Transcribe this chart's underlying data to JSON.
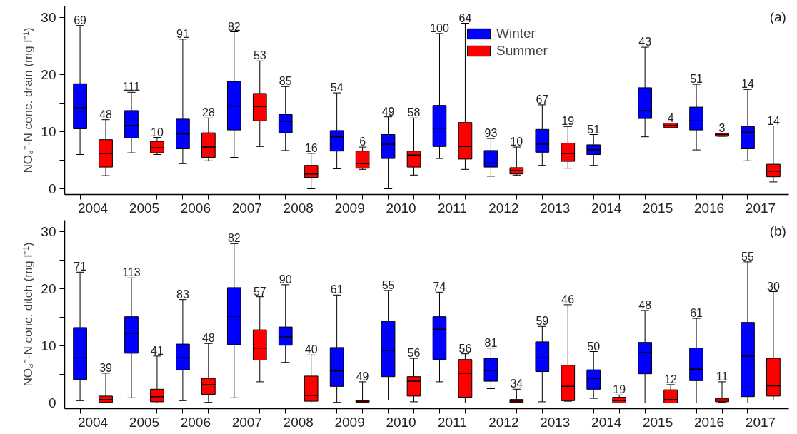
{
  "chart_data": [
    {
      "type": "box",
      "categories": [
        "2004",
        "2005",
        "2006",
        "2007",
        "2008",
        "2009",
        "2010",
        "2011",
        "2012",
        "2013",
        "2014",
        "2015",
        "2016",
        "2017"
      ],
      "ylabel": "NO₃⁻-N conc. drain (mg l⁻¹)",
      "ylim": [
        -1,
        32
      ],
      "yticks": [
        0,
        {
          "value": 5,
          "label": null
        },
        10,
        {
          "value": 15,
          "label": null
        },
        20,
        {
          "value": 25,
          "label": null
        },
        30
      ],
      "legend": "top",
      "annotations": [
        "(a)"
      ],
      "series": [
        {
          "name": "Winter",
          "color": "#0000ff",
          "value_labels": [
            "69",
            "111",
            "91",
            "82",
            "85",
            "54",
            "49",
            "100",
            "93",
            "67",
            "51",
            "43",
            "51",
            "14"
          ],
          "boxes": [
            {
              "low": 6.0,
              "q1": 10.5,
              "median": 14.2,
              "q3": 18.4,
              "high": 28.6
            },
            {
              "low": 6.3,
              "q1": 8.9,
              "median": 11.1,
              "q3": 13.7,
              "high": 16.9
            },
            {
              "low": 4.4,
              "q1": 7.0,
              "median": 9.6,
              "q3": 12.2,
              "high": 26.2
            },
            {
              "low": 5.5,
              "q1": 10.3,
              "median": 14.5,
              "q3": 18.8,
              "high": 27.5
            },
            {
              "low": 6.7,
              "q1": 9.8,
              "median": 11.8,
              "q3": 13.0,
              "high": 17.9
            },
            {
              "low": 3.5,
              "q1": 6.6,
              "median": 9.1,
              "q3": 10.2,
              "high": 16.8
            },
            {
              "low": 0.0,
              "q1": 5.3,
              "median": 7.8,
              "q3": 9.5,
              "high": 12.6
            },
            {
              "low": 5.3,
              "q1": 7.4,
              "median": 10.6,
              "q3": 14.6,
              "high": 27.2
            },
            {
              "low": 2.2,
              "q1": 3.8,
              "median": 4.5,
              "q3": 6.7,
              "high": 8.8
            },
            {
              "low": 4.1,
              "q1": 6.4,
              "median": 7.8,
              "q3": 10.4,
              "high": 14.7
            },
            {
              "low": 4.1,
              "q1": 6.0,
              "median": 6.8,
              "q3": 7.7,
              "high": 9.5
            },
            {
              "low": 9.1,
              "q1": 12.3,
              "median": 13.7,
              "q3": 17.7,
              "high": 24.8
            },
            {
              "low": 6.8,
              "q1": 10.3,
              "median": 11.9,
              "q3": 14.3,
              "high": 18.3
            },
            {
              "low": 4.9,
              "q1": 7.0,
              "median": 9.9,
              "q3": 10.9,
              "high": 17.4
            }
          ]
        },
        {
          "name": "Summer",
          "color": "#ff0000",
          "value_labels": [
            "48",
            "10",
            "28",
            "53",
            "16",
            "6",
            "58",
            "64",
            "10",
            "19",
            null,
            "4",
            "3",
            "14"
          ],
          "boxes": [
            {
              "low": 2.3,
              "q1": 3.8,
              "median": 6.2,
              "q3": 8.6,
              "high": 12.1
            },
            {
              "low": 6.0,
              "q1": 6.3,
              "median": 7.2,
              "q3": 8.3,
              "high": 9.0
            },
            {
              "low": 4.9,
              "q1": 5.5,
              "median": 7.3,
              "q3": 9.8,
              "high": 12.4
            },
            {
              "low": 7.4,
              "q1": 11.9,
              "median": 14.4,
              "q3": 16.7,
              "high": 22.4
            },
            {
              "low": 0.0,
              "q1": 2.0,
              "median": 2.6,
              "q3": 4.1,
              "high": 6.2
            },
            {
              "low": 3.4,
              "q1": 3.6,
              "median": 4.4,
              "q3": 6.6,
              "high": 7.3
            },
            {
              "low": 2.4,
              "q1": 3.8,
              "median": 5.9,
              "q3": 6.6,
              "high": 12.4
            },
            {
              "low": 3.4,
              "q1": 5.2,
              "median": 7.4,
              "q3": 11.6,
              "high": 29.0
            },
            {
              "low": 2.4,
              "q1": 2.6,
              "median": 3.2,
              "q3": 3.7,
              "high": 7.3
            },
            {
              "low": 3.6,
              "q1": 4.8,
              "median": 6.2,
              "q3": 8.0,
              "high": 10.9
            },
            null,
            {
              "low": 10.7,
              "q1": 10.7,
              "median": 11.1,
              "q3": 11.5,
              "high": 11.5
            },
            {
              "low": 9.2,
              "q1": 9.2,
              "median": 9.5,
              "q3": 9.7,
              "high": 9.7
            },
            {
              "low": 1.2,
              "q1": 2.1,
              "median": 3.1,
              "q3": 4.3,
              "high": 11.0
            }
          ]
        }
      ]
    },
    {
      "type": "box",
      "categories": [
        "2004",
        "2005",
        "2006",
        "2007",
        "2008",
        "2009",
        "2010",
        "2011",
        "2012",
        "2013",
        "2014",
        "2015",
        "2016",
        "2017"
      ],
      "ylabel": "NO₃⁻-N conc. ditch (mg l⁻¹)",
      "ylim": [
        -1,
        32
      ],
      "yticks": [
        0,
        {
          "value": 5,
          "label": null
        },
        10,
        {
          "value": 15,
          "label": null
        },
        20,
        {
          "value": 25,
          "label": null
        },
        30
      ],
      "annotations": [
        "(b)"
      ],
      "series": [
        {
          "color": "#0000ff",
          "value_labels": [
            "71",
            "113",
            "83",
            "82",
            "90",
            "61",
            "55",
            "74",
            "81",
            "59",
            "50",
            "48",
            "61",
            "55"
          ],
          "boxes": [
            {
              "low": 0.4,
              "q1": 4.1,
              "median": 7.9,
              "q3": 13.2,
              "high": 22.9
            },
            {
              "low": 0.9,
              "q1": 8.7,
              "median": 12.2,
              "q3": 15.1,
              "high": 21.9
            },
            {
              "low": 0.4,
              "q1": 5.8,
              "median": 7.9,
              "q3": 10.3,
              "high": 18.1
            },
            {
              "low": 0.9,
              "q1": 10.2,
              "median": 15.2,
              "q3": 20.2,
              "high": 27.9
            },
            {
              "low": 7.1,
              "q1": 10.1,
              "median": 11.6,
              "q3": 13.3,
              "high": 20.7
            },
            {
              "low": 0.1,
              "q1": 2.9,
              "median": 5.6,
              "q3": 9.7,
              "high": 18.9
            },
            {
              "low": 0.5,
              "q1": 4.6,
              "median": 9.2,
              "q3": 14.3,
              "high": 19.7
            },
            {
              "low": 3.7,
              "q1": 7.6,
              "median": 12.9,
              "q3": 15.1,
              "high": 19.4
            },
            {
              "low": 2.5,
              "q1": 3.8,
              "median": 5.7,
              "q3": 7.8,
              "high": 9.6
            },
            {
              "low": 0.2,
              "q1": 5.5,
              "median": 7.9,
              "q3": 10.7,
              "high": 13.4
            },
            {
              "low": 0.8,
              "q1": 2.4,
              "median": 4.3,
              "q3": 5.8,
              "high": 9.0
            },
            {
              "low": 0.0,
              "q1": 5.1,
              "median": 8.8,
              "q3": 10.6,
              "high": 16.2
            },
            {
              "low": 0.0,
              "q1": 3.9,
              "median": 5.9,
              "q3": 9.6,
              "high": 14.8
            },
            {
              "low": 0.0,
              "q1": 1.1,
              "median": 8.2,
              "q3": 14.1,
              "high": 24.7
            }
          ]
        },
        {
          "color": "#ff0000",
          "value_labels": [
            "39",
            "41",
            "48",
            "57",
            "40",
            "49",
            "56",
            "56",
            "34",
            "46",
            "19",
            "12",
            "11",
            "30"
          ],
          "boxes": [
            {
              "low": 0.0,
              "q1": 0.1,
              "median": 0.6,
              "q3": 1.2,
              "high": 5.2
            },
            {
              "low": 0.0,
              "q1": 0.2,
              "median": 1.1,
              "q3": 2.4,
              "high": 8.2
            },
            {
              "low": 0.1,
              "q1": 1.5,
              "median": 3.2,
              "q3": 4.3,
              "high": 10.4
            },
            {
              "low": 3.7,
              "q1": 7.5,
              "median": 9.6,
              "q3": 12.8,
              "high": 18.6
            },
            {
              "low": 0.0,
              "q1": 0.3,
              "median": 1.3,
              "q3": 4.7,
              "high": 8.4
            },
            {
              "low": 0.0,
              "q1": 0.1,
              "median": 0.3,
              "q3": 0.5,
              "high": 3.7
            },
            {
              "low": 0.2,
              "q1": 1.2,
              "median": 3.8,
              "q3": 4.6,
              "high": 7.8
            },
            {
              "low": 0.0,
              "q1": 1.0,
              "median": 5.2,
              "q3": 7.6,
              "high": 8.6
            },
            {
              "low": 0.0,
              "q1": 0.1,
              "median": 0.3,
              "q3": 0.6,
              "high": 2.4
            },
            {
              "low": 0.3,
              "q1": 0.4,
              "median": 2.9,
              "q3": 6.6,
              "high": 17.2
            },
            {
              "low": 0.0,
              "q1": 0.0,
              "median": 0.4,
              "q3": 1.0,
              "high": 1.4
            },
            {
              "low": 0.0,
              "q1": 0.0,
              "median": 0.6,
              "q3": 2.3,
              "high": 3.2
            },
            {
              "low": 0.1,
              "q1": 0.2,
              "median": 0.5,
              "q3": 0.8,
              "high": 3.7
            },
            {
              "low": 0.5,
              "q1": 1.2,
              "median": 3.0,
              "q3": 7.8,
              "high": 19.5
            }
          ]
        }
      ]
    }
  ]
}
